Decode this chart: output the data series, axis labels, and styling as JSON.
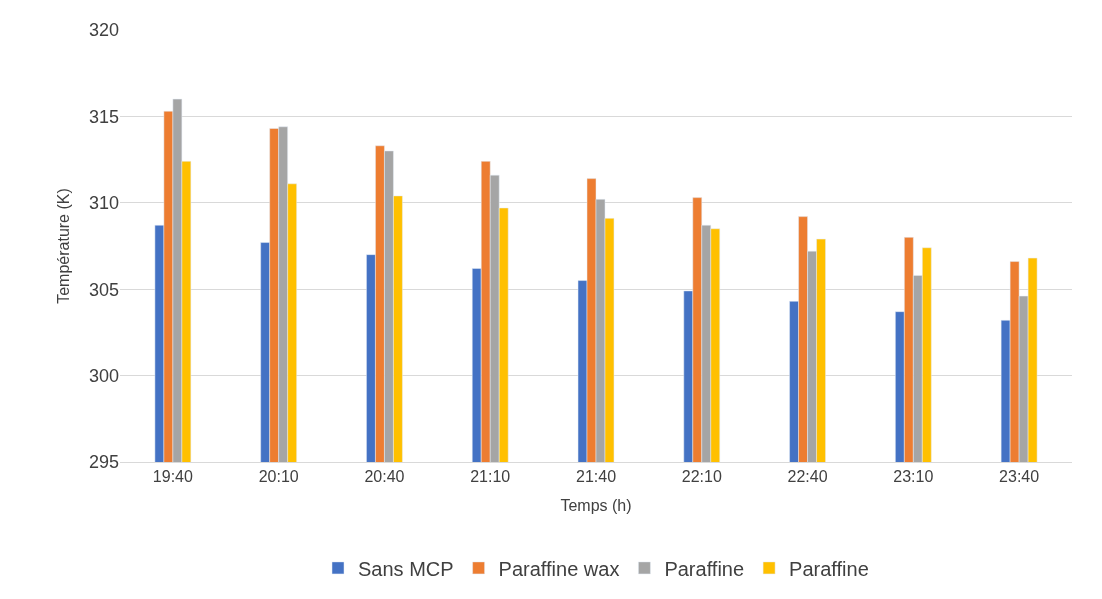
{
  "chart_data": {
    "type": "bar",
    "xlabel": "Temps (h)",
    "ylabel": "Température (K)",
    "categories": [
      "19:40",
      "20:10",
      "20:40",
      "21:10",
      "21:40",
      "22:10",
      "22:40",
      "23:10",
      "23:40"
    ],
    "series": [
      {
        "name": "Sans MCP",
        "color": "#4472c4",
        "values": [
          308.7,
          307.7,
          307.0,
          306.2,
          305.5,
          304.9,
          304.3,
          303.7,
          303.2
        ]
      },
      {
        "name": "Paraffine wax",
        "color": "#ed7d31",
        "values": [
          315.3,
          314.3,
          313.3,
          312.4,
          311.4,
          310.3,
          309.2,
          308.0,
          306.6
        ]
      },
      {
        "name": "Paraffine",
        "color": "#a5a5a5",
        "values": [
          316.0,
          314.4,
          313.0,
          311.6,
          310.2,
          308.7,
          307.2,
          305.8,
          304.6
        ]
      },
      {
        "name": "Paraffine",
        "color": "#ffc000",
        "values": [
          312.4,
          311.1,
          310.4,
          309.7,
          309.1,
          308.5,
          307.9,
          307.4,
          306.8
        ]
      }
    ],
    "ylim": [
      295,
      320
    ],
    "yticks": [
      295,
      300,
      305,
      310,
      315,
      320
    ],
    "grid": "y",
    "legend": "bottom"
  }
}
